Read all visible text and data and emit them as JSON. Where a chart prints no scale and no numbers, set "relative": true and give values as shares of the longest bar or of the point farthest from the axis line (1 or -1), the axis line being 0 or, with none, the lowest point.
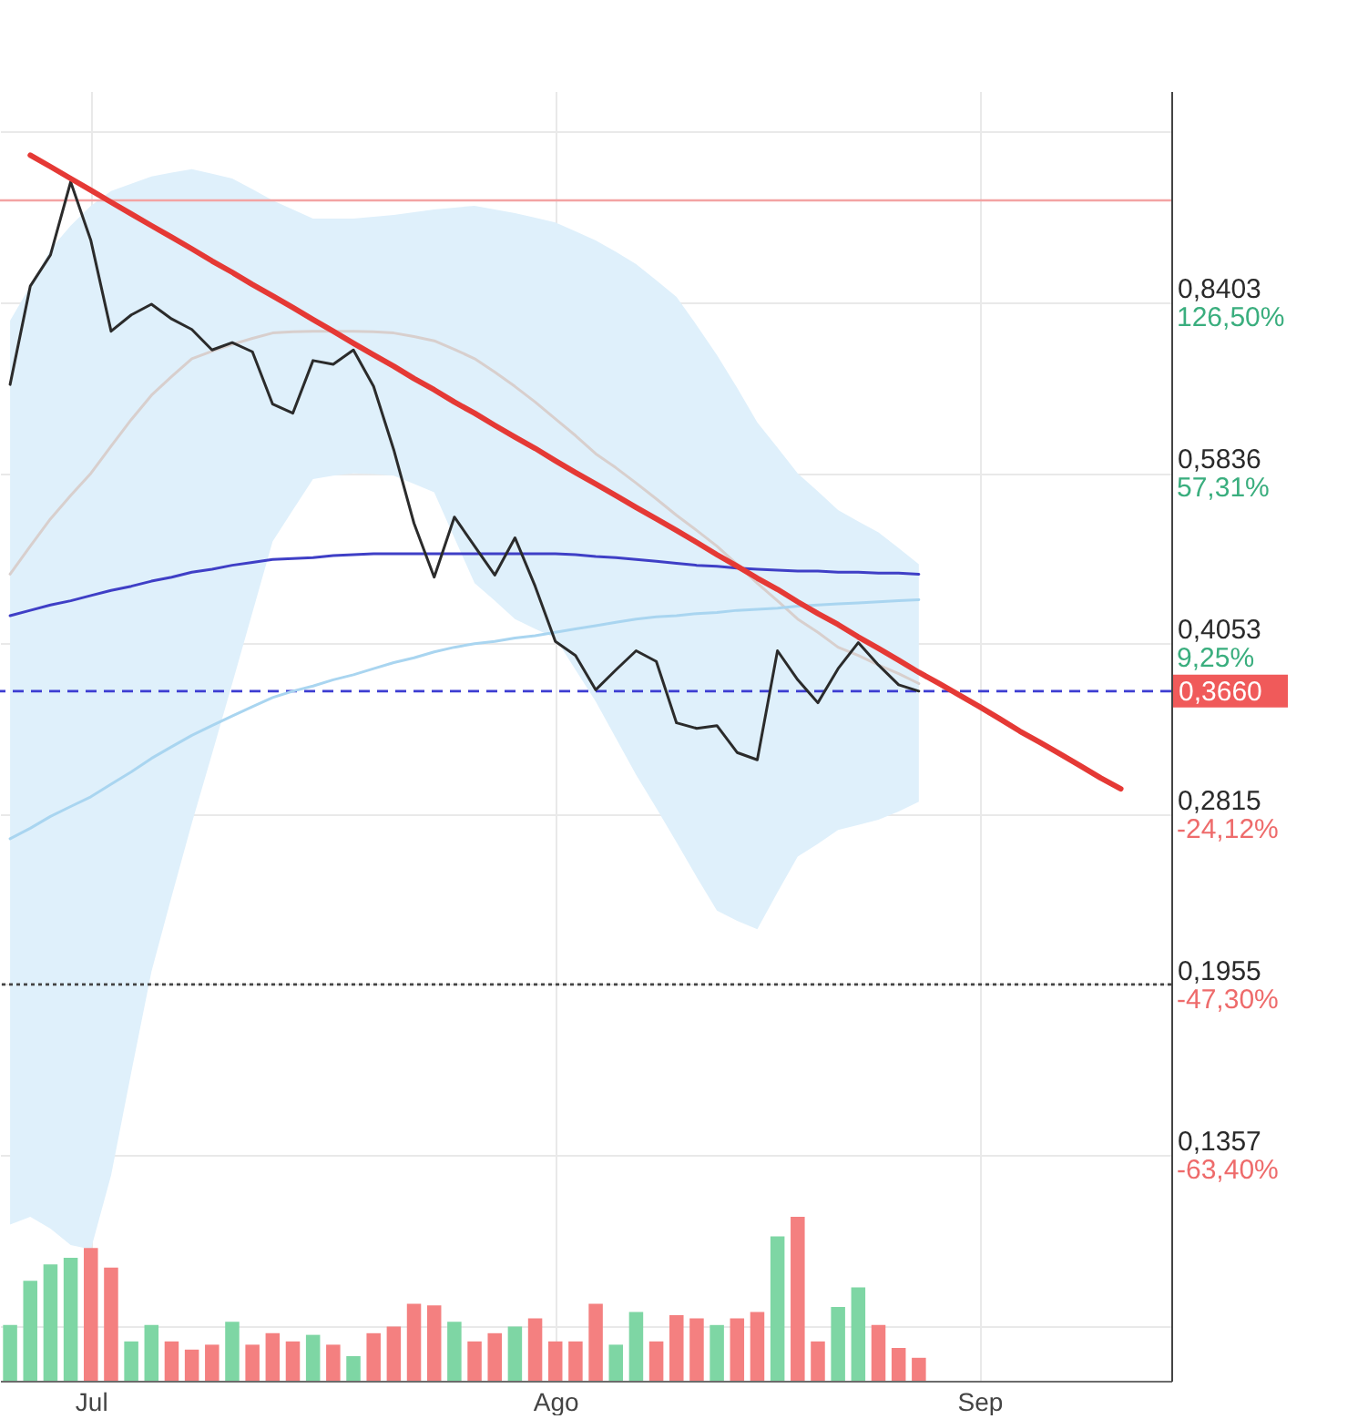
{
  "chart_data": [
    {
      "type": "line",
      "categories": [
        null,
        null,
        null,
        null,
        "Jul",
        null,
        null,
        null,
        null,
        null,
        null,
        null,
        null,
        null,
        null,
        null,
        null,
        null,
        null,
        null,
        null,
        null,
        null,
        null,
        null,
        null,
        null,
        "Ago",
        null,
        null,
        null,
        null,
        null,
        null,
        null,
        null,
        null,
        null,
        null,
        null,
        null,
        null,
        null,
        null,
        null,
        null,
        null,
        null,
        "Sep",
        null,
        null,
        null,
        null,
        null,
        null,
        null,
        null,
        null
      ],
      "series": [
        {
          "type": "line",
          "color": "#d8cfcd",
          "values": [
            0.47,
            0.499,
            0.529,
            0.556,
            0.583,
            0.618,
            0.654,
            0.689,
            0.717,
            0.745,
            0.757,
            0.768,
            0.778,
            0.787,
            0.789,
            0.79,
            0.79,
            0.79,
            0.789,
            0.787,
            0.781,
            0.774,
            0.76,
            0.745,
            0.724,
            0.702,
            0.679,
            0.655,
            0.632,
            0.608,
            0.59,
            0.571,
            0.552,
            0.533,
            0.516,
            0.499,
            0.48,
            0.461,
            0.444,
            0.427,
            0.415,
            0.402,
            0.395,
            0.387,
            0.38,
            0.372,
            null,
            null,
            null,
            null,
            null,
            null,
            null,
            null,
            null,
            null,
            null,
            null
          ],
          "upper": [
            0.808,
            0.87,
            0.941,
            0.99,
            1.033,
            1.066,
            1.083,
            1.1,
            1.109,
            1.117,
            1.106,
            1.095,
            1.07,
            1.045,
            1.025,
            1.005,
            1.005,
            1.005,
            1.009,
            1.013,
            1.019,
            1.025,
            1.029,
            1.033,
            1.025,
            1.017,
            1.007,
            0.997,
            0.978,
            0.959,
            0.936,
            0.912,
            0.881,
            0.85,
            0.8,
            0.751,
            0.7,
            0.65,
            0.616,
            0.583,
            0.561,
            0.539,
            0.526,
            0.514,
            0.497,
            0.48,
            null,
            null,
            null,
            null,
            null,
            null,
            null,
            null,
            null,
            null,
            null,
            null
          ],
          "lower": [
            0.117,
            0.119,
            0.116,
            0.112,
            0.111,
            0.13,
            0.162,
            0.201,
            0.236,
            0.276,
            0.32,
            0.372,
            0.433,
            0.504,
            0.539,
            0.576,
            0.58,
            0.583,
            0.582,
            0.58,
            0.57,
            0.56,
            0.508,
            0.461,
            0.444,
            0.427,
            0.418,
            0.41,
            0.383,
            0.358,
            0.331,
            0.306,
            0.285,
            0.265,
            0.246,
            0.229,
            0.224,
            0.22,
            0.238,
            0.257,
            0.264,
            0.272,
            0.275,
            0.278,
            0.283,
            0.289,
            null,
            null,
            null,
            null,
            null,
            null,
            null,
            null,
            null,
            null,
            null,
            null
          ]
        },
        {
          "type": "line",
          "color": "#3f3fc6",
          "values": [
            0.43,
            0.435,
            0.44,
            0.444,
            0.449,
            0.454,
            0.458,
            0.463,
            0.467,
            0.472,
            0.475,
            0.479,
            0.482,
            0.485,
            0.486,
            0.487,
            0.489,
            0.49,
            0.491,
            0.491,
            0.491,
            0.491,
            0.491,
            0.491,
            0.491,
            0.491,
            0.491,
            0.491,
            0.49,
            0.488,
            0.487,
            0.485,
            0.483,
            0.481,
            0.479,
            0.478,
            0.476,
            0.475,
            0.474,
            0.473,
            0.473,
            0.472,
            0.472,
            0.471,
            0.471,
            0.47,
            null,
            null,
            null,
            null,
            null,
            null,
            null,
            null,
            null,
            null,
            null,
            null
          ]
        },
        {
          "type": "line",
          "color": "#a9d5f0",
          "values": [
            0.267,
            0.273,
            0.28,
            0.286,
            0.292,
            0.3,
            0.308,
            0.317,
            0.325,
            0.333,
            0.34,
            0.347,
            0.354,
            0.361,
            0.366,
            0.37,
            0.375,
            0.379,
            0.384,
            0.389,
            0.393,
            0.398,
            0.402,
            0.405,
            0.407,
            0.41,
            0.412,
            0.415,
            0.418,
            0.421,
            0.424,
            0.427,
            0.429,
            0.43,
            0.432,
            0.433,
            0.435,
            0.436,
            0.437,
            0.439,
            0.44,
            0.441,
            0.442,
            0.443,
            0.444,
            0.445,
            null,
            null,
            null,
            null,
            null,
            null,
            null,
            null,
            null,
            null,
            null,
            null
          ]
        },
        {
          "type": "line",
          "color": "#2b2b2b",
          "values": [
            0.705,
            0.87,
            0.93,
            1.087,
            0.959,
            0.79,
            0.818,
            0.837,
            0.811,
            0.793,
            0.759,
            0.771,
            0.756,
            0.676,
            0.663,
            0.742,
            0.736,
            0.759,
            0.702,
            0.613,
            0.524,
            0.467,
            0.531,
            0.499,
            0.469,
            0.508,
            0.458,
            0.407,
            0.395,
            0.367,
            0.383,
            0.399,
            0.39,
            0.342,
            0.338,
            0.34,
            0.321,
            0.316,
            0.399,
            0.375,
            0.357,
            0.384,
            0.406,
            0.387,
            0.371,
            0.366,
            null,
            null,
            null,
            null,
            null,
            null,
            null,
            null,
            null,
            null,
            null,
            null
          ]
        },
        {
          "type": "line",
          "color": "#e53935",
          "values": [
            null,
            1.151,
            1.123,
            1.095,
            1.068,
            1.041,
            1.015,
            0.99,
            0.966,
            0.942,
            0.918,
            0.896,
            0.873,
            0.852,
            0.831,
            0.81,
            0.79,
            0.77,
            0.751,
            0.733,
            0.714,
            0.697,
            0.679,
            0.663,
            0.646,
            0.63,
            0.615,
            0.599,
            0.584,
            0.57,
            0.556,
            0.542,
            0.529,
            0.516,
            0.503,
            0.49,
            0.478,
            0.466,
            0.455,
            0.443,
            0.432,
            0.422,
            0.411,
            0.401,
            0.391,
            0.381,
            0.372,
            0.363,
            0.354,
            0.345,
            0.336,
            0.328,
            0.32,
            0.312,
            0.304,
            0.297,
            null,
            null
          ]
        }
      ],
      "log": true,
      "ylim": [
        0.0838,
        1.32
      ],
      "yticks": [
        {
          "value": 1.21,
          "label": null
        },
        {
          "value": 0.8403,
          "label": "0,8403"
        },
        {
          "value": 0.5836,
          "label": "0,5836"
        },
        {
          "value": 0.4053,
          "label": "0,4053"
        },
        {
          "value": 0.2815,
          "label": "0,2815"
        },
        {
          "value": 0.1955,
          "label": "0,1955"
        },
        {
          "value": 0.1357,
          "label": "0,1357"
        },
        {
          "value": 0.0942,
          "label": null
        }
      ],
      "annotations": [
        "126,50%",
        "57,31%",
        "9,25%",
        "-24,12%",
        "-47,30%",
        "-63,40%"
      ],
      "ref_lines": [
        {
          "axis": "y",
          "value": 1.045,
          "color": "#f3a3a3",
          "line_style": "solid"
        },
        {
          "axis": "y",
          "value": 0.366,
          "label": "0,3660",
          "color": "#3d3dd2",
          "line_style": "dashed"
        },
        {
          "axis": "y",
          "value": 0.1955,
          "color": "#444444",
          "line_style": "dotted"
        }
      ],
      "grid": true,
      "line_style": "solid"
    },
    {
      "type": "bar",
      "categories": [
        null,
        null,
        null,
        null,
        null,
        null,
        null,
        null,
        null,
        null,
        null,
        null,
        null,
        null,
        null,
        null,
        null,
        null,
        null,
        null,
        null,
        null,
        null,
        null,
        null,
        null,
        null,
        null,
        null,
        null,
        null,
        null,
        null,
        null,
        null,
        null,
        null,
        null,
        null,
        null,
        null,
        null,
        null,
        null,
        null,
        null,
        null,
        null,
        null,
        null,
        null,
        null,
        null,
        null,
        null,
        null,
        null,
        null
      ],
      "values": [
        0.34,
        0.61,
        0.71,
        0.75,
        0.81,
        0.69,
        0.24,
        0.34,
        0.24,
        0.19,
        0.22,
        0.36,
        0.22,
        0.29,
        0.24,
        0.28,
        0.22,
        0.15,
        0.29,
        0.33,
        0.47,
        0.46,
        0.36,
        0.24,
        0.29,
        0.33,
        0.38,
        0.24,
        0.24,
        0.47,
        0.22,
        0.42,
        0.24,
        0.4,
        0.38,
        0.34,
        0.38,
        0.42,
        0.88,
        1,
        0.24,
        0.45,
        0.57,
        0.34,
        0.2,
        0.14,
        null,
        null,
        null,
        null,
        null,
        null,
        null,
        null,
        null,
        null,
        null,
        null
      ],
      "colors": [
        "#7ed6a4",
        "#7ed6a4",
        "#7ed6a4",
        "#7ed6a4",
        "#f48080",
        "#f48080",
        "#7ed6a4",
        "#7ed6a4",
        "#f48080",
        "#f48080",
        "#f48080",
        "#7ed6a4",
        "#f48080",
        "#f48080",
        "#f48080",
        "#7ed6a4",
        "#f48080",
        "#7ed6a4",
        "#f48080",
        "#f48080",
        "#f48080",
        "#f48080",
        "#7ed6a4",
        "#f48080",
        "#f48080",
        "#7ed6a4",
        "#f48080",
        "#f48080",
        "#f48080",
        "#f48080",
        "#7ed6a4",
        "#7ed6a4",
        "#f48080",
        "#f48080",
        "#f48080",
        "#7ed6a4",
        "#f48080",
        "#f48080",
        "#7ed6a4",
        "#f48080",
        "#f48080",
        "#7ed6a4",
        "#7ed6a4",
        "#f48080",
        "#f48080",
        "#f48080",
        null,
        null,
        null,
        null,
        null,
        null,
        null,
        null,
        null,
        null,
        null,
        null
      ],
      "relative": true
    }
  ]
}
